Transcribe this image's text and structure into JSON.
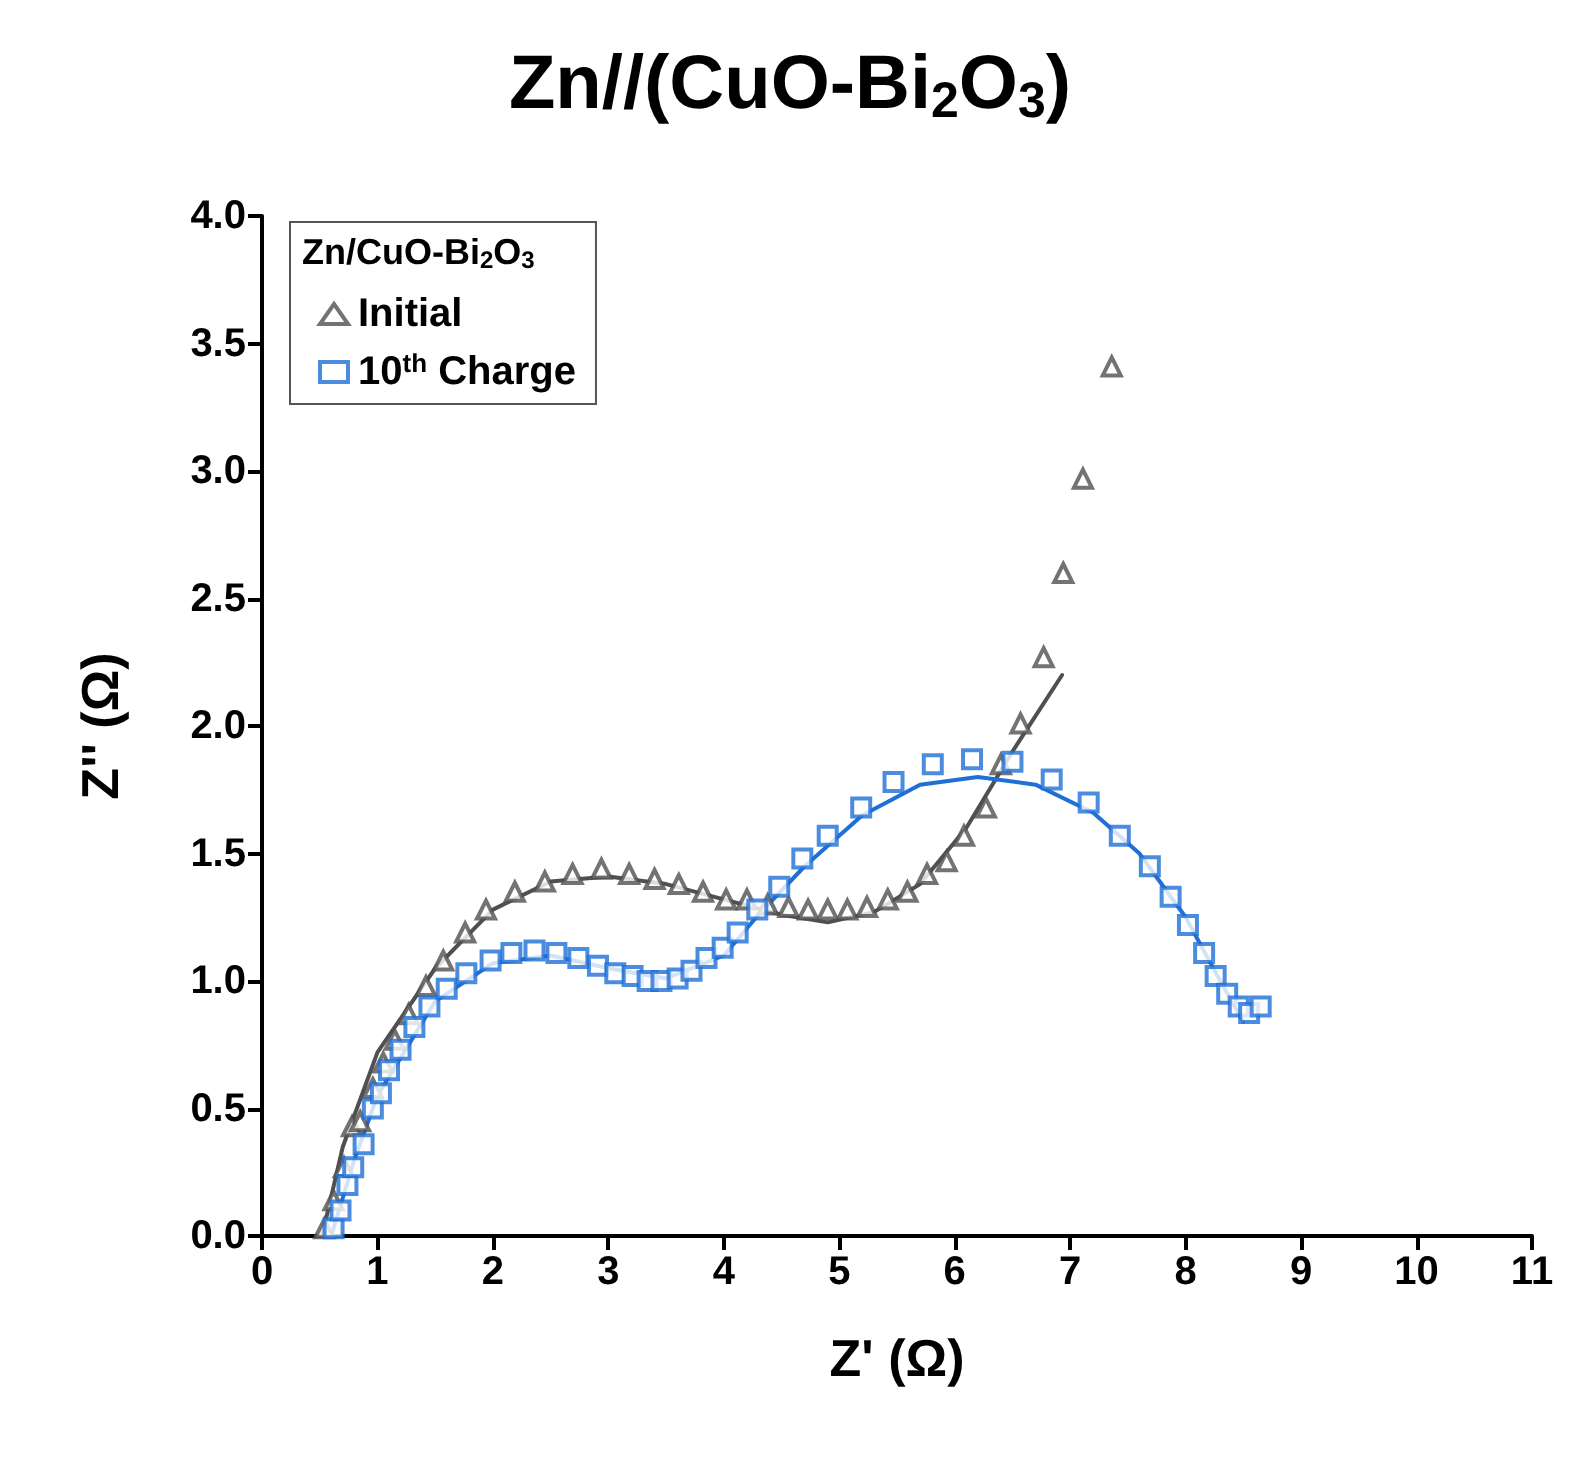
{
  "chart_data": {
    "type": "scatter",
    "title": "Zn//(CuO-Bi$_{2}$O$_{3}$)",
    "xlabel": "Z' (Ω)",
    "ylabel": "Z'' (Ω)",
    "legend_title": "Zn/CuO-Bi$_{2}$O$_{3}$",
    "legend": "top left",
    "grid": false,
    "xlim": [
      0,
      11
    ],
    "xticks": [
      0,
      1,
      2,
      3,
      4,
      5,
      6,
      7,
      8,
      9,
      10,
      11
    ],
    "ylim": [
      0,
      4
    ],
    "yticks": [
      {
        "value": 0,
        "label": "0.0"
      },
      {
        "value": 0.5,
        "label": "0.5"
      },
      {
        "value": 1,
        "label": "1.0"
      },
      {
        "value": 1.5,
        "label": "1.5"
      },
      {
        "value": 2,
        "label": "2.0"
      },
      {
        "value": 2.5,
        "label": "2.5"
      },
      {
        "value": 3,
        "label": "3.0"
      },
      {
        "value": 3.5,
        "label": "3.5"
      },
      {
        "value": 4,
        "label": "4.0"
      }
    ],
    "series": [
      {
        "name": "Initial",
        "marker": "triangle",
        "color": "#505050",
        "x": [
          0.54,
          0.62,
          0.71,
          0.78,
          0.85,
          0.96,
          1.05,
          1.15,
          1.27,
          1.42,
          1.57,
          1.76,
          1.94,
          2.19,
          2.45,
          2.69,
          2.94,
          3.18,
          3.4,
          3.61,
          3.82,
          4.02,
          4.2,
          4.38,
          4.56,
          4.73,
          4.9,
          5.07,
          5.24,
          5.42,
          5.59,
          5.76,
          5.93,
          6.08,
          6.27,
          6.4,
          6.57,
          6.77,
          6.94,
          7.11,
          7.36
        ],
        "values": [
          0.03,
          0.14,
          0.27,
          0.43,
          0.45,
          0.58,
          0.68,
          0.77,
          0.87,
          0.98,
          1.08,
          1.19,
          1.28,
          1.35,
          1.39,
          1.42,
          1.44,
          1.42,
          1.4,
          1.38,
          1.35,
          1.32,
          1.32,
          1.3,
          1.29,
          1.28,
          1.28,
          1.28,
          1.29,
          1.32,
          1.35,
          1.42,
          1.47,
          1.57,
          1.68,
          1.85,
          2.01,
          2.27,
          2.6,
          2.97,
          3.41
        ]
      },
      {
        "name": "10$^{th}$ Charge",
        "marker": "square",
        "color": "#1f6fd6",
        "x": [
          0.62,
          0.68,
          0.74,
          0.79,
          0.88,
          0.96,
          1.03,
          1.1,
          1.2,
          1.32,
          1.45,
          1.6,
          1.77,
          1.98,
          2.16,
          2.36,
          2.55,
          2.74,
          2.91,
          3.06,
          3.21,
          3.34,
          3.46,
          3.6,
          3.72,
          3.85,
          3.99,
          4.12,
          4.29,
          4.48,
          4.68,
          4.9,
          5.19,
          5.47,
          5.81,
          6.15,
          6.5,
          6.84,
          7.16,
          7.43,
          7.69,
          7.87,
          8.02,
          8.16,
          8.26,
          8.36,
          8.46,
          8.55,
          8.65
        ],
        "values": [
          0.03,
          0.1,
          0.2,
          0.27,
          0.36,
          0.5,
          0.56,
          0.65,
          0.73,
          0.82,
          0.9,
          0.97,
          1.03,
          1.08,
          1.11,
          1.12,
          1.11,
          1.09,
          1.06,
          1.03,
          1.02,
          1.0,
          1.0,
          1.01,
          1.04,
          1.09,
          1.13,
          1.19,
          1.28,
          1.37,
          1.48,
          1.57,
          1.68,
          1.78,
          1.85,
          1.87,
          1.86,
          1.79,
          1.7,
          1.57,
          1.45,
          1.33,
          1.22,
          1.11,
          1.02,
          0.95,
          0.9,
          0.875,
          0.9
        ]
      },
      {
        "type": "line",
        "marker": "none",
        "color": "#505050",
        "x": [
          0.52,
          0.7,
          1.0,
          1.5,
          2.0,
          2.5,
          3.0,
          3.5,
          4.0,
          4.5,
          4.9,
          5.3,
          5.7,
          6.1,
          6.5,
          6.93
        ],
        "values": [
          0,
          0.35,
          0.72,
          1.05,
          1.28,
          1.39,
          1.41,
          1.38,
          1.32,
          1.26,
          1.23,
          1.27,
          1.38,
          1.6,
          1.9,
          2.2
        ]
      },
      {
        "type": "line",
        "marker": "none",
        "color": "#1f6fd6",
        "x": [
          0.6,
          0.8,
          1.0,
          1.5,
          2.0,
          2.5,
          3.0,
          3.5,
          4.0,
          4.3,
          4.7,
          5.2,
          5.7,
          6.2,
          6.7,
          7.2,
          7.6,
          8.0,
          8.3,
          8.5
        ],
        "values": [
          0,
          0.3,
          0.55,
          0.92,
          1.07,
          1.1,
          1.05,
          1.01,
          1.1,
          1.26,
          1.45,
          1.65,
          1.77,
          1.8,
          1.77,
          1.66,
          1.5,
          1.25,
          1.0,
          0.84
        ]
      }
    ]
  }
}
